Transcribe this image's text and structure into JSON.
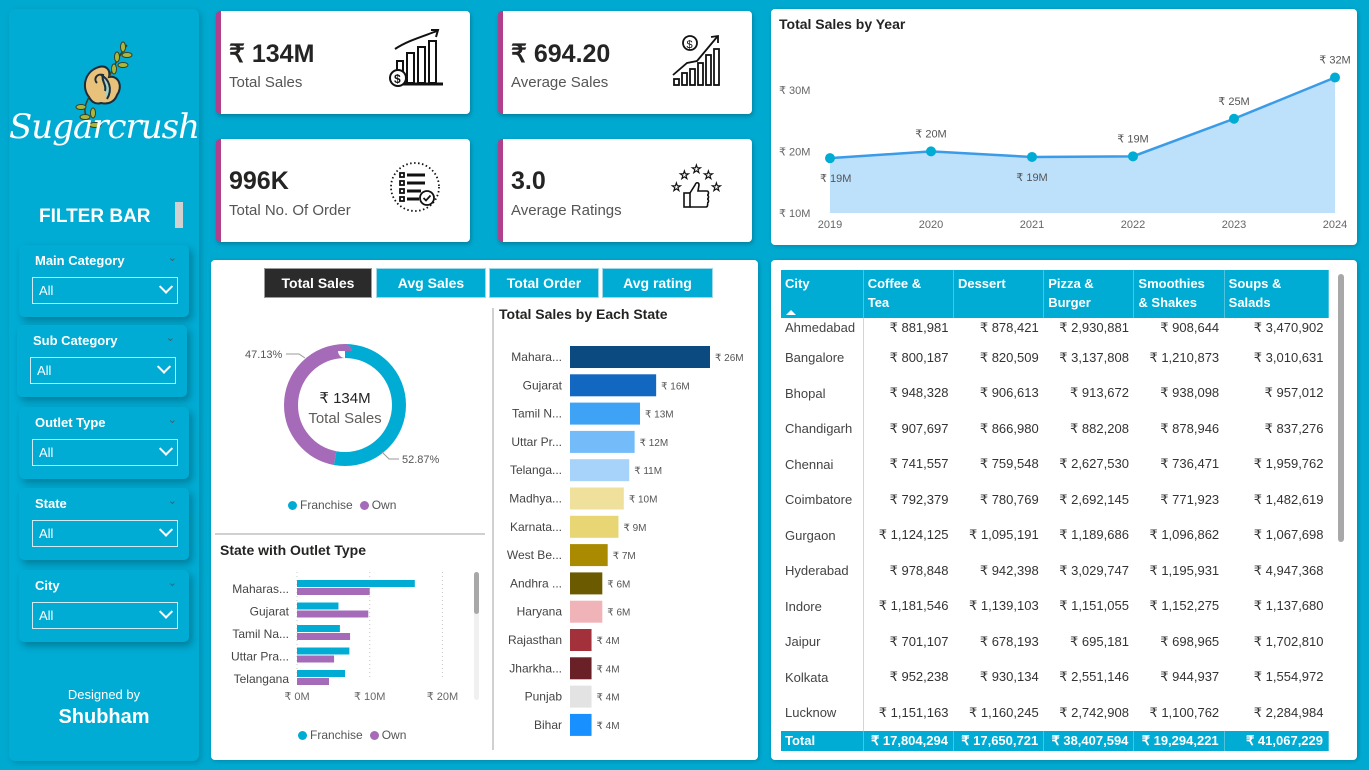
{
  "brand": {
    "name": "Sugarcrush",
    "designed_by_label": "Designed by",
    "designer": "Shubham"
  },
  "filters": {
    "title": "FILTER BAR",
    "items": [
      {
        "label": "Main Category",
        "value": "All"
      },
      {
        "label": "Sub Category",
        "value": "All"
      },
      {
        "label": "Outlet Type",
        "value": "All"
      },
      {
        "label": "State",
        "value": "All"
      },
      {
        "label": "City",
        "value": "All"
      }
    ]
  },
  "kpis": [
    {
      "value": "₹ 134M",
      "label": "Total Sales",
      "icon": "sales-growth-icon"
    },
    {
      "value": "₹ 694.20",
      "label": "Average Sales",
      "icon": "average-sales-icon"
    },
    {
      "value": "996K",
      "label": "Total No. Of Order",
      "icon": "order-list-icon"
    },
    {
      "value": "3.0",
      "label": "Average Ratings",
      "icon": "rating-thumbs-up-icon"
    }
  ],
  "colors": {
    "accent": "#00acd4",
    "kpi_border": "#b0408c",
    "franchise": "#00acd4",
    "own": "#a66bb8",
    "line": "#3a9be8",
    "area": "#bde0fb"
  },
  "tabs": [
    {
      "label": "Total Sales",
      "active": true
    },
    {
      "label": "Avg Sales",
      "active": false
    },
    {
      "label": "Total Order",
      "active": false
    },
    {
      "label": "Avg rating",
      "active": false
    }
  ],
  "chart_data": [
    {
      "id": "sales_by_year",
      "type": "area",
      "title": "Total Sales by Year",
      "x": [
        "2019",
        "2020",
        "2021",
        "2022",
        "2023",
        "2024"
      ],
      "values": [
        18.9,
        20.0,
        19.1,
        19.2,
        25.3,
        32.0
      ],
      "data_labels": [
        "₹ 19M",
        "₹ 20M",
        "₹ 19M",
        "₹ 19M",
        "₹ 25M",
        "₹ 32M"
      ],
      "yticks": [
        "₹ 10M",
        "₹ 20M",
        "₹ 30M"
      ],
      "ytick_values": [
        10,
        20,
        30
      ],
      "ylim": [
        10,
        35
      ],
      "xlabel": "",
      "ylabel": "",
      "grid": false
    },
    {
      "id": "outlet_donut",
      "type": "pie",
      "title": "",
      "center_value": "₹ 134M",
      "center_label": "Total Sales",
      "slices": [
        {
          "name": "Franchise",
          "percent": 52.87,
          "label": "52.87%"
        },
        {
          "name": "Own",
          "percent": 47.13,
          "label": "47.13%"
        }
      ],
      "legend": [
        "Franchise",
        "Own"
      ],
      "legend_position": "bottom"
    },
    {
      "id": "sales_by_state",
      "type": "bar",
      "orientation": "horizontal",
      "title": "Total Sales by Each State",
      "categories": [
        "Mahara...",
        "Gujarat",
        "Tamil N...",
        "Uttar Pr...",
        "Telanga...",
        "Madhya...",
        "Karnata...",
        "West Be...",
        "Andhra ...",
        "Haryana",
        "Rajasthan",
        "Jharkha...",
        "Punjab",
        "Bihar"
      ],
      "values": [
        26,
        16,
        13,
        12,
        11,
        10,
        9,
        7,
        6,
        6,
        4,
        4,
        4,
        4
      ],
      "data_labels": [
        "₹ 26M",
        "₹ 16M",
        "₹ 13M",
        "₹ 12M",
        "₹ 11M",
        "₹ 10M",
        "₹ 9M",
        "₹ 7M",
        "₹ 6M",
        "₹ 6M",
        "₹ 4M",
        "₹ 4M",
        "₹ 4M",
        "₹ 4M"
      ],
      "bar_colors": [
        "#0b4a80",
        "#1267c0",
        "#3ea2f5",
        "#73bbf9",
        "#a7d3fb",
        "#efe19c",
        "#e8d574",
        "#a98a00",
        "#6b5a00",
        "#f0b4b8",
        "#a3313c",
        "#6a2027",
        "#e3e3e3",
        "#1890ff"
      ]
    },
    {
      "id": "state_outlet_type",
      "type": "bar",
      "orientation": "horizontal",
      "title": "State with Outlet Type",
      "categories": [
        "Maharas...",
        "Gujarat",
        "Tamil Na...",
        "Uttar Pra...",
        "Telangana"
      ],
      "series": [
        {
          "name": "Franchise",
          "values": [
            16.2,
            5.7,
            5.9,
            7.2,
            6.6
          ]
        },
        {
          "name": "Own",
          "values": [
            10.0,
            9.8,
            7.3,
            5.1,
            4.4
          ]
        }
      ],
      "xticks": [
        "₹ 0M",
        "₹ 10M",
        "₹ 20M"
      ],
      "xtick_values": [
        0,
        10,
        20
      ],
      "xlim": [
        0,
        22
      ],
      "legend": [
        "Franchise",
        "Own"
      ],
      "legend_position": "bottom",
      "grid": true
    }
  ],
  "table": {
    "columns": [
      "City",
      "Coffee & Tea",
      "Dessert",
      "Pizza & Burger",
      "Smoothies & Shakes",
      "Soups & Salads"
    ],
    "column_lines": [
      [
        "City"
      ],
      [
        "Coffee &",
        "Tea"
      ],
      [
        "Dessert"
      ],
      [
        "Pizza &",
        "Burger"
      ],
      [
        "Smoothies",
        "& Shakes"
      ],
      [
        "Soups &",
        "Salads"
      ]
    ],
    "rows": [
      [
        "Ahmedabad",
        "₹ 881,981",
        "₹ 878,421",
        "₹ 2,930,881",
        "₹ 908,644",
        "₹ 3,470,902"
      ],
      [
        "Bangalore",
        "₹ 800,187",
        "₹ 820,509",
        "₹ 3,137,808",
        "₹ 1,210,873",
        "₹ 3,010,631"
      ],
      [
        "Bhopal",
        "₹ 948,328",
        "₹ 906,613",
        "₹ 913,672",
        "₹ 938,098",
        "₹ 957,012"
      ],
      [
        "Chandigarh",
        "₹ 907,697",
        "₹ 866,980",
        "₹ 882,208",
        "₹ 878,946",
        "₹ 837,276"
      ],
      [
        "Chennai",
        "₹ 741,557",
        "₹ 759,548",
        "₹ 2,627,530",
        "₹ 736,471",
        "₹ 1,959,762"
      ],
      [
        "Coimbatore",
        "₹ 792,379",
        "₹ 780,769",
        "₹ 2,692,145",
        "₹ 771,923",
        "₹ 1,482,619"
      ],
      [
        "Gurgaon",
        "₹ 1,124,125",
        "₹ 1,095,191",
        "₹ 1,189,686",
        "₹ 1,096,862",
        "₹ 1,067,698"
      ],
      [
        "Hyderabad",
        "₹ 978,848",
        "₹ 942,398",
        "₹ 3,029,747",
        "₹ 1,195,931",
        "₹ 4,947,368"
      ],
      [
        "Indore",
        "₹ 1,181,546",
        "₹ 1,139,103",
        "₹ 1,151,055",
        "₹ 1,152,275",
        "₹ 1,137,680"
      ],
      [
        "Jaipur",
        "₹ 701,107",
        "₹ 678,193",
        "₹ 695,181",
        "₹ 698,965",
        "₹ 1,702,810"
      ],
      [
        "Kolkata",
        "₹ 952,238",
        "₹ 930,134",
        "₹ 2,551,146",
        "₹ 944,937",
        "₹ 1,554,972"
      ],
      [
        "Lucknow",
        "₹ 1,151,163",
        "₹ 1,160,245",
        "₹ 2,742,908",
        "₹ 1,100,762",
        "₹ 2,284,984"
      ]
    ],
    "total": [
      "Total",
      "₹ 17,804,294",
      "₹ 17,650,721",
      "₹ 38,407,594",
      "₹ 19,294,221",
      "₹ 41,067,229"
    ],
    "sort_column": "City",
    "sort_direction": "ascending"
  }
}
